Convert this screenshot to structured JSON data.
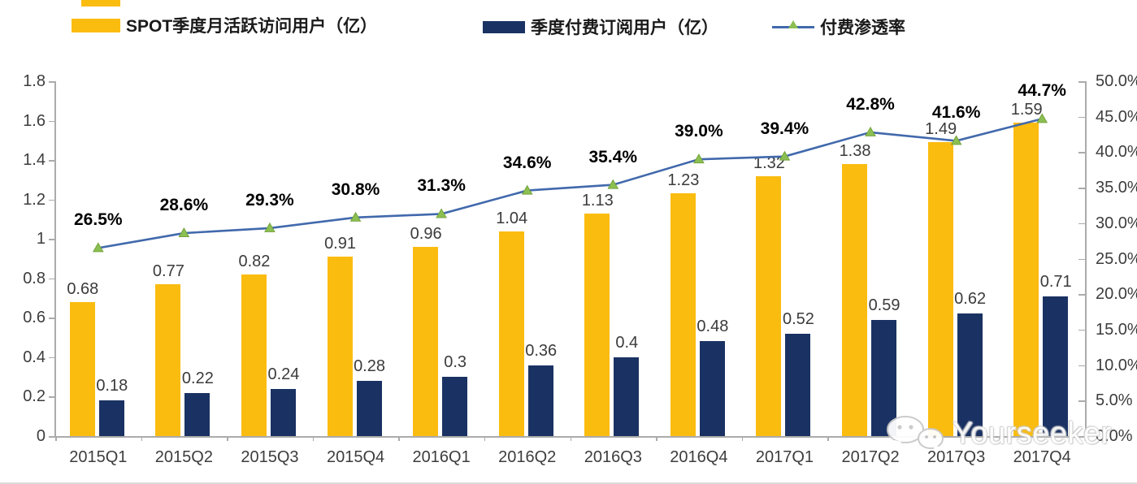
{
  "legend": {
    "items": [
      {
        "label": "SPOT季度月活跃访问用户（亿）",
        "swatch": "bar",
        "color": "#FBBC10"
      },
      {
        "label": "季度付费订阅用户（亿）",
        "swatch": "bar",
        "color": "#1A3263"
      },
      {
        "label": "付费渗透率",
        "swatch": "line",
        "color": "#4169AC",
        "marker_color": "#8CBF52"
      }
    ]
  },
  "chart_data": {
    "type": "combo",
    "categories": [
      "2015Q1",
      "2015Q2",
      "2015Q3",
      "2015Q4",
      "2016Q1",
      "2016Q2",
      "2016Q3",
      "2016Q4",
      "2017Q1",
      "2017Q2",
      "2017Q3",
      "2017Q4"
    ],
    "series": [
      {
        "name": "SPOT季度月活跃访问用户（亿）",
        "type": "bar",
        "axis": "left",
        "color": "#FBBC10",
        "values": [
          0.68,
          0.77,
          0.82,
          0.91,
          0.96,
          1.04,
          1.13,
          1.23,
          1.32,
          1.38,
          1.49,
          1.59
        ],
        "labels": [
          "0.68",
          "0.77",
          "0.82",
          "0.91",
          "0.96",
          "1.04",
          "1.13",
          "1.23",
          "1.32",
          "1.38",
          "1.49",
          "1.59"
        ]
      },
      {
        "name": "季度付费订阅用户（亿）",
        "type": "bar",
        "axis": "left",
        "color": "#1A3263",
        "values": [
          0.18,
          0.22,
          0.24,
          0.28,
          0.3,
          0.36,
          0.4,
          0.48,
          0.52,
          0.59,
          0.62,
          0.71
        ],
        "labels": [
          "0.18",
          "0.22",
          "0.24",
          "0.28",
          "0.3",
          "0.36",
          "0.4",
          "0.48",
          "0.52",
          "0.59",
          "0.62",
          "0.71"
        ]
      },
      {
        "name": "付费渗透率",
        "type": "line",
        "axis": "right",
        "color": "#4169AC",
        "marker": "triangle",
        "marker_color": "#8CBF52",
        "values": [
          26.5,
          28.6,
          29.3,
          30.8,
          31.3,
          34.6,
          35.4,
          39.0,
          39.4,
          42.8,
          41.6,
          44.7
        ],
        "labels": [
          "26.5%",
          "28.6%",
          "29.3%",
          "30.8%",
          "31.3%",
          "34.6%",
          "35.4%",
          "39.0%",
          "39.4%",
          "42.8%",
          "41.6%",
          "44.7%"
        ]
      }
    ],
    "left_axis": {
      "min": 0,
      "max": 1.8,
      "step": 0.2,
      "ticks": [
        "1.8",
        "1.6",
        "1.4",
        "1.2",
        "1",
        "0.8",
        "0.6",
        "0.4",
        "0.2",
        "0"
      ]
    },
    "right_axis": {
      "min": 0,
      "max": 50,
      "step": 5,
      "ticks": [
        "50.0%",
        "45.0%",
        "40.0%",
        "35.0%",
        "30.0%",
        "25.0%",
        "20.0%",
        "15.0%",
        "10.0%",
        "5.0%",
        "0.0%"
      ]
    },
    "grid": false,
    "legend_position": "top"
  },
  "watermark": {
    "text": "Yourseeker",
    "icon": "wechat-bubbles-icon"
  }
}
